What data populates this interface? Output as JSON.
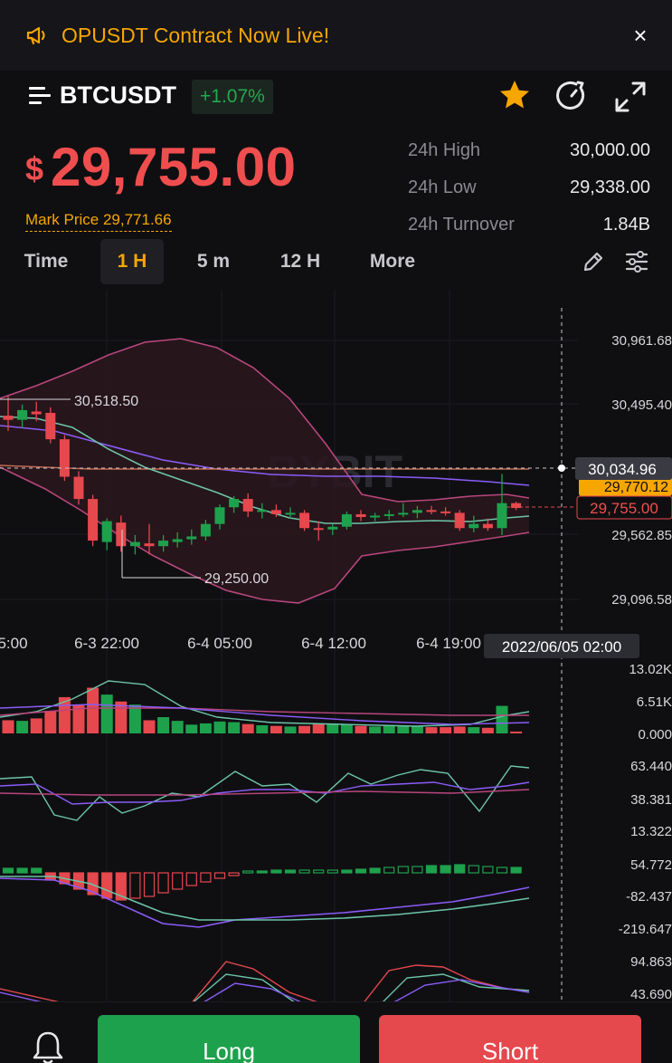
{
  "banner": {
    "text": "OPUSDT Contract Now Live!",
    "icon": "megaphone-icon",
    "close": "×"
  },
  "header": {
    "symbol": "BTCUSDT",
    "change": "+1.07%"
  },
  "price": {
    "currency": "$",
    "value": "29,755.00",
    "mark_label": "Mark Price 29,771.66"
  },
  "stats": [
    {
      "label": "24h High",
      "value": "30,000.00"
    },
    {
      "label": "24h Low",
      "value": "29,338.00"
    },
    {
      "label": "24h Turnover",
      "value": "1.84B"
    }
  ],
  "timeframes": [
    {
      "label": "Time",
      "active": false
    },
    {
      "label": "1 H",
      "active": true
    },
    {
      "label": "5 m",
      "active": false
    },
    {
      "label": "12 H",
      "active": false
    },
    {
      "label": "More",
      "active": false
    }
  ],
  "colors": {
    "up": "#1ea14c",
    "down": "#e5484d",
    "accent": "#f7a600"
  },
  "chart_data": {
    "type": "candlestick",
    "watermark": "BYBIT",
    "price_axis": [
      "30,961.68",
      "30,495.40",
      "29,562.85",
      "29,096.58"
    ],
    "price_axis_values": [
      30961.68,
      30495.4,
      29562.85,
      29096.58
    ],
    "time_axis": [
      "5:00",
      "6-3 22:00",
      "6-4 05:00",
      "6-4 12:00",
      "6-4 19:00"
    ],
    "crosshair": {
      "price": "30,034.96",
      "time": "2022/06/05 02:00"
    },
    "last_price_label": "29,755.00",
    "mark_price_label": "29,770.12",
    "high_annotation": "30,518.50",
    "low_annotation": "29,250.00",
    "candles": [
      {
        "o": 30420,
        "h": 30560,
        "l": 30310,
        "c": 30390
      },
      {
        "o": 30390,
        "h": 30500,
        "l": 30330,
        "c": 30460
      },
      {
        "o": 30450,
        "h": 30520,
        "l": 30380,
        "c": 30430
      },
      {
        "o": 30440,
        "h": 30480,
        "l": 30220,
        "c": 30250
      },
      {
        "o": 30250,
        "h": 30280,
        "l": 29950,
        "c": 29980
      },
      {
        "o": 29980,
        "h": 30020,
        "l": 29780,
        "c": 29820
      },
      {
        "o": 29820,
        "h": 29850,
        "l": 29480,
        "c": 29520
      },
      {
        "o": 29510,
        "h": 29680,
        "l": 29450,
        "c": 29660
      },
      {
        "o": 29650,
        "h": 29700,
        "l": 29440,
        "c": 29480
      },
      {
        "o": 29480,
        "h": 29560,
        "l": 29420,
        "c": 29510
      },
      {
        "o": 29500,
        "h": 29640,
        "l": 29420,
        "c": 29480
      },
      {
        "o": 29480,
        "h": 29560,
        "l": 29440,
        "c": 29520
      },
      {
        "o": 29510,
        "h": 29580,
        "l": 29470,
        "c": 29530
      },
      {
        "o": 29530,
        "h": 29600,
        "l": 29490,
        "c": 29550
      },
      {
        "o": 29550,
        "h": 29670,
        "l": 29520,
        "c": 29640
      },
      {
        "o": 29640,
        "h": 29780,
        "l": 29600,
        "c": 29760
      },
      {
        "o": 29760,
        "h": 29840,
        "l": 29720,
        "c": 29820
      },
      {
        "o": 29820,
        "h": 29860,
        "l": 29690,
        "c": 29730
      },
      {
        "o": 29730,
        "h": 29790,
        "l": 29680,
        "c": 29740
      },
      {
        "o": 29740,
        "h": 29780,
        "l": 29690,
        "c": 29710
      },
      {
        "o": 29710,
        "h": 29760,
        "l": 29680,
        "c": 29720
      },
      {
        "o": 29720,
        "h": 29740,
        "l": 29590,
        "c": 29610
      },
      {
        "o": 29610,
        "h": 29660,
        "l": 29520,
        "c": 29600
      },
      {
        "o": 29600,
        "h": 29640,
        "l": 29560,
        "c": 29620
      },
      {
        "o": 29620,
        "h": 29730,
        "l": 29600,
        "c": 29710
      },
      {
        "o": 29710,
        "h": 29740,
        "l": 29660,
        "c": 29690
      },
      {
        "o": 29690,
        "h": 29720,
        "l": 29660,
        "c": 29700
      },
      {
        "o": 29700,
        "h": 29740,
        "l": 29670,
        "c": 29710
      },
      {
        "o": 29710,
        "h": 29790,
        "l": 29690,
        "c": 29720
      },
      {
        "o": 29720,
        "h": 29770,
        "l": 29680,
        "c": 29740
      },
      {
        "o": 29740,
        "h": 29770,
        "l": 29710,
        "c": 29730
      },
      {
        "o": 29730,
        "h": 29760,
        "l": 29700,
        "c": 29720
      },
      {
        "o": 29720,
        "h": 29740,
        "l": 29590,
        "c": 29610
      },
      {
        "o": 29610,
        "h": 29700,
        "l": 29580,
        "c": 29640
      },
      {
        "o": 29640,
        "h": 29680,
        "l": 29590,
        "c": 29610
      },
      {
        "o": 29610,
        "h": 30000,
        "l": 29560,
        "c": 29790
      },
      {
        "o": 29790,
        "h": 29800,
        "l": 29740,
        "c": 29755
      }
    ],
    "volume_axis": [
      "13.02K",
      "6.51K",
      "0.000"
    ],
    "volume": [
      2.1,
      2.0,
      2.4,
      3.6,
      5.8,
      4.6,
      7.3,
      6.2,
      5.1,
      4.6,
      2.1,
      2.6,
      2.0,
      1.4,
      1.6,
      1.9,
      1.8,
      1.5,
      1.3,
      1.2,
      1.1,
      1.2,
      1.6,
      1.5,
      1.5,
      1.2,
      1.1,
      1.3,
      1.2,
      1.1,
      1.0,
      1.0,
      1.1,
      1.0,
      0.9,
      4.4,
      0.3
    ],
    "rsi_axis": [
      "63.440",
      "38.381",
      "13.322"
    ],
    "macd_axis": [
      "54.772",
      "-82.437",
      "-219.647"
    ],
    "kdj_axis": [
      "94.863",
      "43.690"
    ]
  },
  "actions": {
    "long": "Long",
    "short": "Short"
  }
}
